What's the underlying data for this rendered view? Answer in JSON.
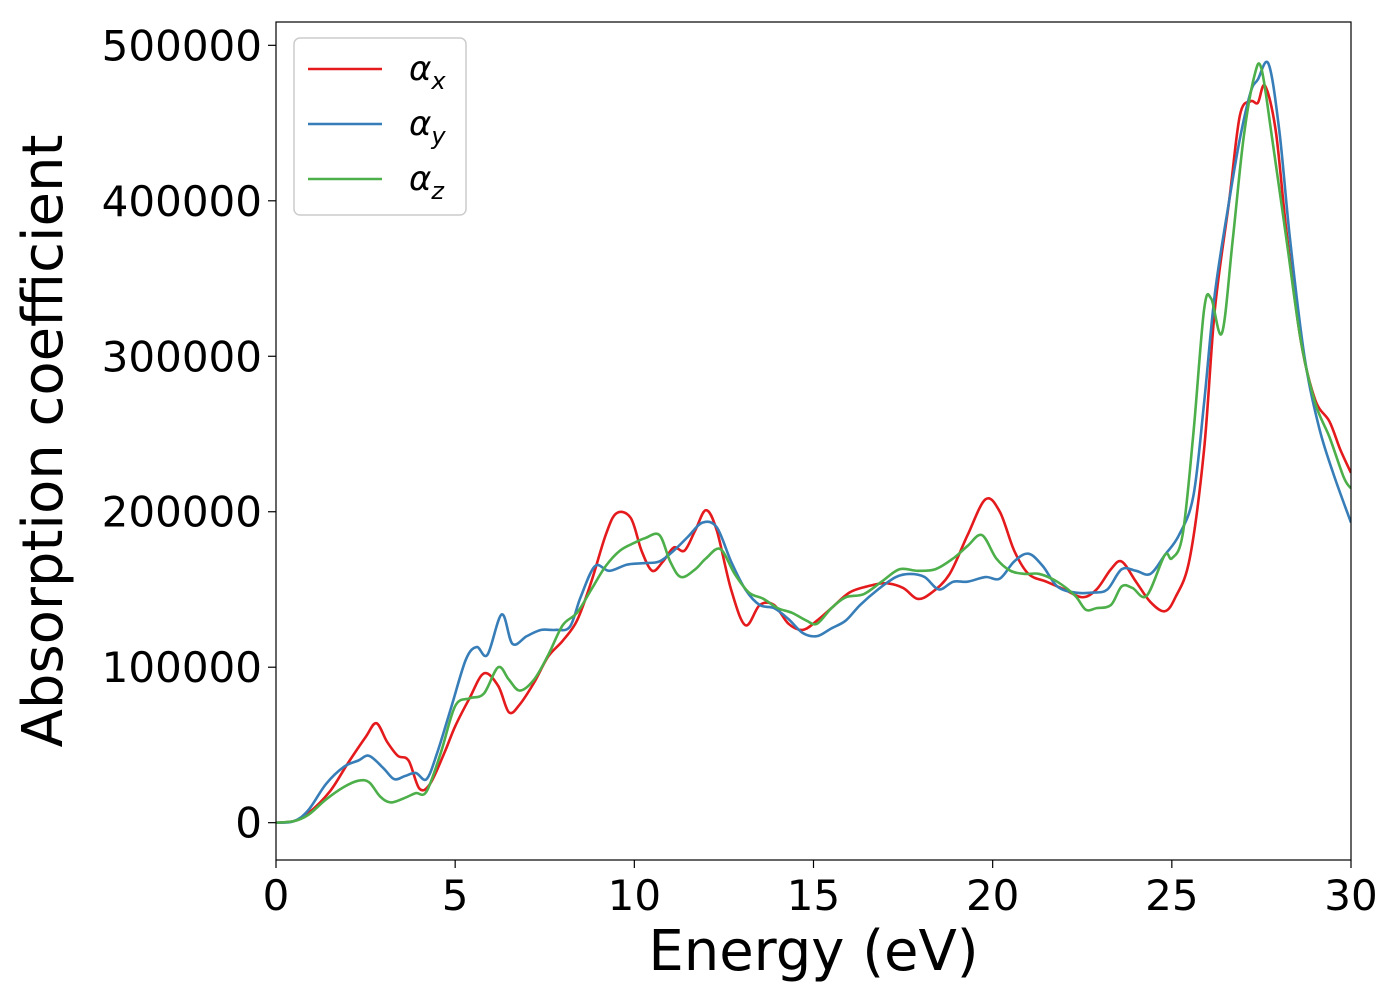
{
  "chart_data": {
    "type": "line",
    "title": "",
    "xlabel": "Energy (eV)",
    "ylabel": "Absorption coefficient",
    "xlim": [
      0,
      30
    ],
    "ylim": [
      -24000,
      515000
    ],
    "xticks": [
      0,
      5,
      10,
      15,
      20,
      25,
      30
    ],
    "yticks": [
      0,
      100000,
      200000,
      300000,
      400000,
      500000
    ],
    "grid": false,
    "legend_position": "top-left",
    "series": [
      {
        "name": "α",
        "sub": "x",
        "color": "#e41a1c",
        "points": [
          [
            0,
            0
          ],
          [
            0.5,
            1000
          ],
          [
            0.9,
            6000
          ],
          [
            1.5,
            20000
          ],
          [
            2.0,
            38000
          ],
          [
            2.5,
            55000
          ],
          [
            2.8,
            64000
          ],
          [
            3.1,
            52000
          ],
          [
            3.4,
            43000
          ],
          [
            3.7,
            40000
          ],
          [
            4.0,
            22000
          ],
          [
            4.3,
            25000
          ],
          [
            4.7,
            45000
          ],
          [
            5.0,
            62000
          ],
          [
            5.4,
            80000
          ],
          [
            5.8,
            96000
          ],
          [
            6.2,
            88000
          ],
          [
            6.5,
            71000
          ],
          [
            6.8,
            76000
          ],
          [
            7.2,
            90000
          ],
          [
            7.6,
            107000
          ],
          [
            8.0,
            117000
          ],
          [
            8.4,
            130000
          ],
          [
            8.8,
            155000
          ],
          [
            9.2,
            185000
          ],
          [
            9.5,
            199000
          ],
          [
            9.9,
            196000
          ],
          [
            10.2,
            175000
          ],
          [
            10.5,
            162000
          ],
          [
            10.8,
            168000
          ],
          [
            11.1,
            177000
          ],
          [
            11.4,
            175000
          ],
          [
            11.7,
            188000
          ],
          [
            12.0,
            201000
          ],
          [
            12.3,
            188000
          ],
          [
            12.7,
            150000
          ],
          [
            13.1,
            127000
          ],
          [
            13.5,
            140000
          ],
          [
            13.9,
            140000
          ],
          [
            14.3,
            128000
          ],
          [
            14.7,
            124000
          ],
          [
            15.1,
            130000
          ],
          [
            15.5,
            138000
          ],
          [
            16.0,
            148000
          ],
          [
            16.5,
            152000
          ],
          [
            17.0,
            154000
          ],
          [
            17.5,
            151000
          ],
          [
            17.9,
            144000
          ],
          [
            18.3,
            148000
          ],
          [
            18.8,
            160000
          ],
          [
            19.3,
            185000
          ],
          [
            19.8,
            208000
          ],
          [
            20.2,
            200000
          ],
          [
            20.6,
            175000
          ],
          [
            21.0,
            160000
          ],
          [
            21.5,
            155000
          ],
          [
            22.0,
            150000
          ],
          [
            22.5,
            145000
          ],
          [
            22.9,
            150000
          ],
          [
            23.3,
            163000
          ],
          [
            23.6,
            168000
          ],
          [
            24.0,
            155000
          ],
          [
            24.4,
            142000
          ],
          [
            24.8,
            136000
          ],
          [
            25.1,
            145000
          ],
          [
            25.5,
            170000
          ],
          [
            25.9,
            240000
          ],
          [
            26.2,
            330000
          ],
          [
            26.6,
            400000
          ],
          [
            26.9,
            455000
          ],
          [
            27.2,
            464000
          ],
          [
            27.4,
            463000
          ],
          [
            27.6,
            474000
          ],
          [
            27.9,
            445000
          ],
          [
            28.2,
            380000
          ],
          [
            28.6,
            310000
          ],
          [
            29.0,
            272000
          ],
          [
            29.4,
            258000
          ],
          [
            29.7,
            240000
          ],
          [
            30.0,
            225000
          ]
        ]
      },
      {
        "name": "α",
        "sub": "y",
        "color": "#377eb8",
        "points": [
          [
            0,
            0
          ],
          [
            0.5,
            1000
          ],
          [
            0.9,
            8000
          ],
          [
            1.4,
            25000
          ],
          [
            1.9,
            36000
          ],
          [
            2.3,
            40000
          ],
          [
            2.6,
            43000
          ],
          [
            3.0,
            35000
          ],
          [
            3.3,
            28000
          ],
          [
            3.6,
            30000
          ],
          [
            3.9,
            32000
          ],
          [
            4.2,
            28000
          ],
          [
            4.5,
            45000
          ],
          [
            4.9,
            75000
          ],
          [
            5.3,
            105000
          ],
          [
            5.6,
            113000
          ],
          [
            5.9,
            108000
          ],
          [
            6.3,
            134000
          ],
          [
            6.6,
            115000
          ],
          [
            7.0,
            120000
          ],
          [
            7.4,
            124000
          ],
          [
            7.8,
            124000
          ],
          [
            8.2,
            126000
          ],
          [
            8.5,
            145000
          ],
          [
            8.9,
            165000
          ],
          [
            9.3,
            162000
          ],
          [
            9.8,
            166000
          ],
          [
            10.3,
            167000
          ],
          [
            10.7,
            168000
          ],
          [
            11.1,
            175000
          ],
          [
            11.5,
            184000
          ],
          [
            11.9,
            193000
          ],
          [
            12.3,
            190000
          ],
          [
            12.7,
            168000
          ],
          [
            13.1,
            150000
          ],
          [
            13.5,
            140000
          ],
          [
            13.9,
            138000
          ],
          [
            14.3,
            131000
          ],
          [
            14.7,
            122000
          ],
          [
            15.1,
            120000
          ],
          [
            15.5,
            125000
          ],
          [
            15.9,
            130000
          ],
          [
            16.3,
            140000
          ],
          [
            16.8,
            150000
          ],
          [
            17.3,
            158000
          ],
          [
            17.7,
            160000
          ],
          [
            18.1,
            158000
          ],
          [
            18.5,
            150000
          ],
          [
            18.9,
            155000
          ],
          [
            19.3,
            155000
          ],
          [
            19.8,
            158000
          ],
          [
            20.2,
            157000
          ],
          [
            20.6,
            168000
          ],
          [
            21.0,
            173000
          ],
          [
            21.4,
            165000
          ],
          [
            21.8,
            152000
          ],
          [
            22.3,
            148000
          ],
          [
            22.8,
            148000
          ],
          [
            23.2,
            150000
          ],
          [
            23.6,
            163000
          ],
          [
            24.0,
            162000
          ],
          [
            24.4,
            160000
          ],
          [
            24.8,
            172000
          ],
          [
            25.2,
            185000
          ],
          [
            25.6,
            210000
          ],
          [
            25.9,
            270000
          ],
          [
            26.2,
            340000
          ],
          [
            26.6,
            400000
          ],
          [
            26.9,
            440000
          ],
          [
            27.2,
            470000
          ],
          [
            27.4,
            478000
          ],
          [
            27.7,
            488000
          ],
          [
            28.0,
            445000
          ],
          [
            28.3,
            375000
          ],
          [
            28.7,
            300000
          ],
          [
            29.1,
            255000
          ],
          [
            29.5,
            225000
          ],
          [
            30.0,
            193000
          ]
        ]
      },
      {
        "name": "α",
        "sub": "z",
        "color": "#4daf4a",
        "points": [
          [
            0,
            0
          ],
          [
            0.5,
            1000
          ],
          [
            0.9,
            5000
          ],
          [
            1.4,
            15000
          ],
          [
            1.9,
            23000
          ],
          [
            2.3,
            27000
          ],
          [
            2.6,
            26000
          ],
          [
            2.9,
            17000
          ],
          [
            3.2,
            13000
          ],
          [
            3.6,
            16000
          ],
          [
            3.9,
            19000
          ],
          [
            4.2,
            20000
          ],
          [
            4.6,
            45000
          ],
          [
            5.0,
            75000
          ],
          [
            5.4,
            80000
          ],
          [
            5.8,
            83000
          ],
          [
            6.2,
            100000
          ],
          [
            6.5,
            92000
          ],
          [
            6.8,
            85000
          ],
          [
            7.2,
            92000
          ],
          [
            7.6,
            108000
          ],
          [
            8.0,
            127000
          ],
          [
            8.4,
            135000
          ],
          [
            8.8,
            150000
          ],
          [
            9.2,
            165000
          ],
          [
            9.6,
            175000
          ],
          [
            10.0,
            180000
          ],
          [
            10.3,
            183000
          ],
          [
            10.7,
            185000
          ],
          [
            11.0,
            168000
          ],
          [
            11.3,
            158000
          ],
          [
            11.7,
            163000
          ],
          [
            12.0,
            170000
          ],
          [
            12.4,
            176000
          ],
          [
            12.8,
            160000
          ],
          [
            13.2,
            148000
          ],
          [
            13.6,
            144000
          ],
          [
            14.0,
            138000
          ],
          [
            14.4,
            135000
          ],
          [
            14.8,
            130000
          ],
          [
            15.1,
            128000
          ],
          [
            15.5,
            138000
          ],
          [
            15.9,
            145000
          ],
          [
            16.4,
            147000
          ],
          [
            16.9,
            155000
          ],
          [
            17.4,
            163000
          ],
          [
            17.9,
            162000
          ],
          [
            18.4,
            163000
          ],
          [
            18.9,
            170000
          ],
          [
            19.3,
            178000
          ],
          [
            19.7,
            185000
          ],
          [
            20.1,
            170000
          ],
          [
            20.5,
            162000
          ],
          [
            20.9,
            160000
          ],
          [
            21.3,
            160000
          ],
          [
            21.8,
            155000
          ],
          [
            22.3,
            146000
          ],
          [
            22.6,
            137000
          ],
          [
            22.9,
            138000
          ],
          [
            23.3,
            140000
          ],
          [
            23.6,
            152000
          ],
          [
            23.9,
            151000
          ],
          [
            24.3,
            146000
          ],
          [
            24.8,
            172000
          ],
          [
            25.0,
            170000
          ],
          [
            25.3,
            185000
          ],
          [
            25.6,
            250000
          ],
          [
            25.9,
            330000
          ],
          [
            26.1,
            337000
          ],
          [
            26.4,
            315000
          ],
          [
            26.7,
            375000
          ],
          [
            27.0,
            440000
          ],
          [
            27.3,
            480000
          ],
          [
            27.5,
            485000
          ],
          [
            27.8,
            440000
          ],
          [
            28.2,
            375000
          ],
          [
            28.6,
            310000
          ],
          [
            29.0,
            270000
          ],
          [
            29.4,
            248000
          ],
          [
            29.8,
            222000
          ],
          [
            30.0,
            215000
          ]
        ]
      }
    ]
  }
}
